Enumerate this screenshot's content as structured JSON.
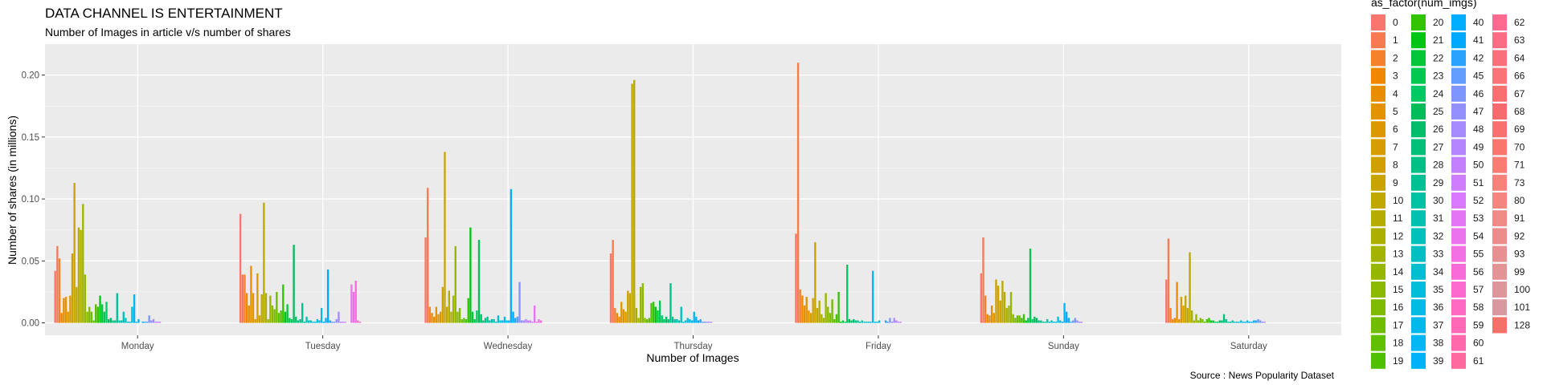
{
  "chart_data": {
    "type": "bar",
    "title": "DATA CHANNEL IS ENTERTAINMENT",
    "subtitle": "Number of Images in article v/s number of shares",
    "xlabel": "Number of Images",
    "ylabel": "Number of shares (in millions)",
    "caption": "Source : News Popularity Dataset",
    "ylim": [
      -0.01,
      0.225
    ],
    "yticks": [
      0.0,
      0.05,
      0.1,
      0.15,
      0.2
    ],
    "ytick_labels": [
      "0.00",
      "0.05",
      "0.10",
      "0.15",
      "0.20"
    ],
    "grid": true,
    "legend_position": "right",
    "legend_title": "as_factor(num_imgs)",
    "categories": [
      "Monday",
      "Tuesday",
      "Wednesday",
      "Thursday",
      "Friday",
      "Sunday",
      "Saturday"
    ],
    "series_names": [
      "0",
      "1",
      "2",
      "3",
      "4",
      "5",
      "6",
      "7",
      "8",
      "9",
      "10",
      "11",
      "12",
      "13",
      "14",
      "15",
      "16",
      "17",
      "18",
      "19",
      "20",
      "21",
      "22",
      "23",
      "24",
      "25",
      "26",
      "27",
      "28",
      "29",
      "30",
      "31",
      "32",
      "33",
      "34",
      "35",
      "36",
      "37",
      "38",
      "39",
      "40",
      "41",
      "42",
      "45",
      "46",
      "47",
      "48",
      "49",
      "50",
      "51",
      "52",
      "53",
      "54",
      "55",
      "56",
      "57",
      "58",
      "59",
      "60",
      "61",
      "62",
      "63",
      "64",
      "66",
      "67",
      "68",
      "69",
      "70",
      "71",
      "73",
      "80",
      "91",
      "92",
      "93",
      "99",
      "100",
      "101",
      "128"
    ],
    "series_colors": [
      "#F8766D",
      "#F67C4F",
      "#F4822D",
      "#EF8800",
      "#E98D00",
      "#E59200",
      "#DF9700",
      "#D89B00",
      "#D1A000",
      "#C9A400",
      "#C0A800",
      "#B6AC00",
      "#ACAF00",
      "#A2B300",
      "#96B600",
      "#8BB900",
      "#7EBB00",
      "#70BD00",
      "#60BF00",
      "#4DC100",
      "#33C300",
      "#00C516",
      "#00C73A",
      "#00C851",
      "#00C963",
      "#00BC59",
      "#00BD69",
      "#00BF78",
      "#00C086",
      "#00C194",
      "#00C1A2",
      "#00C1AF",
      "#00C0BB",
      "#00BFC4",
      "#00BECE",
      "#00BDD8",
      "#00BBE2",
      "#00B9EB",
      "#00B6F3",
      "#00B2FA",
      "#00AEFF",
      "#00A9FF",
      "#2AA3FF",
      "#619CFF",
      "#7D96FF",
      "#9390FF",
      "#A58AFF",
      "#B584FF",
      "#C37FFF",
      "#CF7CFF",
      "#DA79FD",
      "#E476F6",
      "#EC73EE",
      "#F36FE4",
      "#F86CDA",
      "#FC6ACF",
      "#FF68C3",
      "#FF68B7",
      "#FF68AA",
      "#FF699D",
      "#FD6B90",
      "#FB6D83",
      "#F8707A",
      "#F87476",
      "#F8706F",
      "#F66B6D",
      "#F7716F",
      "#F8766D",
      "#F87D73",
      "#F7827A",
      "#F48680",
      "#F08A86",
      "#EC8D8B",
      "#E89091",
      "#E39396",
      "#DE969B",
      "#D999A0",
      "#F27168"
    ],
    "groups": [
      {
        "category": "Monday",
        "values": [
          0.042,
          0.062,
          0.052,
          0.008,
          0.02,
          0.021,
          0.009,
          0.022,
          0.056,
          0.113,
          0.029,
          0.077,
          0.075,
          0.096,
          0.039,
          0.009,
          0.013,
          0.009,
          0.002,
          0.015,
          0.013,
          0.022,
          0.015,
          0.009,
          0.017,
          0.003,
          0.004,
          0.002,
          0.002,
          0.024,
          0.002,
          0.002,
          0.009,
          0.004,
          0.001,
          0.001,
          0.013,
          0.023,
          0.001,
          0.003,
          0.0,
          0.001,
          0.001,
          0.001,
          0.006,
          0.002,
          0.003,
          0.001,
          0.001,
          0.001,
          0.0,
          0.0,
          0.0,
          0.0,
          0.0,
          0.0,
          0.0,
          0.0,
          0.0,
          0.0,
          0.0,
          0.0,
          0.0,
          0.0,
          0.0,
          0.0,
          0.0,
          0.0,
          0.0,
          0.0,
          0.0,
          0.0,
          0.0,
          0.0,
          0.0,
          0.0,
          0.0,
          0.0
        ]
      },
      {
        "category": "Tuesday",
        "values": [
          0.088,
          0.039,
          0.039,
          0.024,
          0.014,
          0.046,
          0.024,
          0.003,
          0.04,
          0.006,
          0.023,
          0.097,
          0.024,
          0.003,
          0.022,
          0.014,
          0.011,
          0.025,
          0.008,
          0.01,
          0.031,
          0.009,
          0.015,
          0.004,
          0.003,
          0.063,
          0.005,
          0.002,
          0.003,
          0.016,
          0.001,
          0.005,
          0.002,
          0.002,
          0.001,
          0.001,
          0.003,
          0.002,
          0.012,
          0.001,
          0.004,
          0.043,
          0.002,
          0.001,
          0.001,
          0.003,
          0.009,
          0.001,
          0.001,
          0.001,
          0.0,
          0.0,
          0.031,
          0.025,
          0.034,
          0.002,
          0.001,
          0.0,
          0.0,
          0.0,
          0.0,
          0.0,
          0.0,
          0.0,
          0.0,
          0.0,
          0.0,
          0.0,
          0.0,
          0.0,
          0.0,
          0.0,
          0.0,
          0.0,
          0.0,
          0.0,
          0.0,
          0.0
        ]
      },
      {
        "category": "Wednesday",
        "values": [
          0.069,
          0.109,
          0.013,
          0.008,
          0.005,
          0.013,
          0.007,
          0.009,
          0.029,
          0.138,
          0.013,
          0.026,
          0.009,
          0.022,
          0.062,
          0.009,
          0.012,
          0.003,
          0.004,
          0.003,
          0.02,
          0.077,
          0.009,
          0.003,
          0.01,
          0.067,
          0.007,
          0.002,
          0.004,
          0.005,
          0.002,
          0.003,
          0.003,
          0.001,
          0.006,
          0.002,
          0.002,
          0.005,
          0.002,
          0.002,
          0.108,
          0.009,
          0.004,
          0.005,
          0.033,
          0.002,
          0.002,
          0.003,
          0.002,
          0.002,
          0.001,
          0.014,
          0.001,
          0.003,
          0.002,
          0.0,
          0.0,
          0.0,
          0.0,
          0.0,
          0.0,
          0.0,
          0.0,
          0.0,
          0.0,
          0.0,
          0.0,
          0.0,
          0.0,
          0.0,
          0.0,
          0.0,
          0.0,
          0.0,
          0.0,
          0.0,
          0.0,
          0.0
        ]
      },
      {
        "category": "Thursday",
        "values": [
          0.056,
          0.067,
          0.012,
          0.008,
          0.005,
          0.017,
          0.011,
          0.009,
          0.026,
          0.024,
          0.193,
          0.196,
          0.012,
          0.004,
          0.029,
          0.032,
          0.004,
          0.003,
          0.004,
          0.016,
          0.017,
          0.013,
          0.01,
          0.018,
          0.006,
          0.003,
          0.005,
          0.003,
          0.032,
          0.005,
          0.003,
          0.003,
          0.002,
          0.013,
          0.001,
          0.002,
          0.004,
          0.003,
          0.002,
          0.009,
          0.005,
          0.002,
          0.003,
          0.001,
          0.001,
          0.001,
          0.001,
          0.001,
          0.0,
          0.0,
          0.0,
          0.0,
          0.0,
          0.0,
          0.0,
          0.0,
          0.0,
          0.0,
          0.0,
          0.0,
          0.0,
          0.0,
          0.0,
          0.0,
          0.0,
          0.0,
          0.0,
          0.0,
          0.0,
          0.0,
          0.0,
          0.0,
          0.0,
          0.0,
          0.0,
          0.0,
          0.0,
          0.0
        ]
      },
      {
        "category": "Friday",
        "values": [
          0.072,
          0.21,
          0.027,
          0.022,
          0.014,
          0.021,
          0.01,
          0.008,
          0.02,
          0.065,
          0.012,
          0.018,
          0.007,
          0.004,
          0.024,
          0.013,
          0.008,
          0.019,
          0.003,
          0.007,
          0.025,
          0.001,
          0.002,
          0.001,
          0.047,
          0.003,
          0.002,
          0.003,
          0.002,
          0.002,
          0.001,
          0.002,
          0.001,
          0.001,
          0.001,
          0.001,
          0.042,
          0.001,
          0.001,
          0.002,
          0.0,
          0.0,
          0.002,
          0.001,
          0.004,
          0.001,
          0.004,
          0.002,
          0.001,
          0.001,
          0.0,
          0.0,
          0.0,
          0.0,
          0.0,
          0.0,
          0.0,
          0.0,
          0.0,
          0.0,
          0.0,
          0.0,
          0.0,
          0.0,
          0.0,
          0.0,
          0.0,
          0.0,
          0.0,
          0.0,
          0.0,
          0.0,
          0.0,
          0.0,
          0.0,
          0.0,
          0.0,
          0.0
        ]
      },
      {
        "category": "Sunday",
        "values": [
          0.04,
          0.069,
          0.022,
          0.007,
          0.006,
          0.014,
          0.008,
          0.035,
          0.03,
          0.018,
          0.034,
          0.025,
          0.012,
          0.014,
          0.025,
          0.007,
          0.004,
          0.006,
          0.006,
          0.004,
          0.007,
          0.002,
          0.004,
          0.06,
          0.003,
          0.005,
          0.004,
          0.002,
          0.002,
          0.001,
          0.001,
          0.003,
          0.001,
          0.002,
          0.001,
          0.001,
          0.005,
          0.002,
          0.001,
          0.016,
          0.009,
          0.004,
          0.001,
          0.002,
          0.004,
          0.002,
          0.001,
          0.001,
          0.0,
          0.0,
          0.0,
          0.0,
          0.0,
          0.0,
          0.0,
          0.0,
          0.0,
          0.0,
          0.0,
          0.0,
          0.0,
          0.0,
          0.0,
          0.0,
          0.0,
          0.0,
          0.0,
          0.0,
          0.0,
          0.0,
          0.0,
          0.0,
          0.0,
          0.0,
          0.0,
          0.0,
          0.0,
          0.0
        ]
      },
      {
        "category": "Saturday",
        "values": [
          0.035,
          0.068,
          0.012,
          0.003,
          0.004,
          0.033,
          0.003,
          0.021,
          0.014,
          0.022,
          0.012,
          0.057,
          0.01,
          0.002,
          0.007,
          0.002,
          0.004,
          0.003,
          0.001,
          0.003,
          0.004,
          0.002,
          0.002,
          0.001,
          0.001,
          0.002,
          0.002,
          0.007,
          0.003,
          0.001,
          0.001,
          0.002,
          0.001,
          0.001,
          0.001,
          0.002,
          0.001,
          0.001,
          0.002,
          0.001,
          0.001,
          0.002,
          0.002,
          0.003,
          0.002,
          0.001,
          0.001,
          0.0,
          0.0,
          0.0,
          0.0,
          0.0,
          0.0,
          0.0,
          0.0,
          0.0,
          0.0,
          0.0,
          0.0,
          0.0,
          0.0,
          0.0,
          0.0,
          0.0,
          0.0,
          0.0,
          0.0,
          0.0,
          0.0,
          0.0,
          0.0,
          0.0,
          0.0,
          0.0,
          0.0,
          0.0,
          0.0,
          0.0
        ]
      }
    ]
  }
}
